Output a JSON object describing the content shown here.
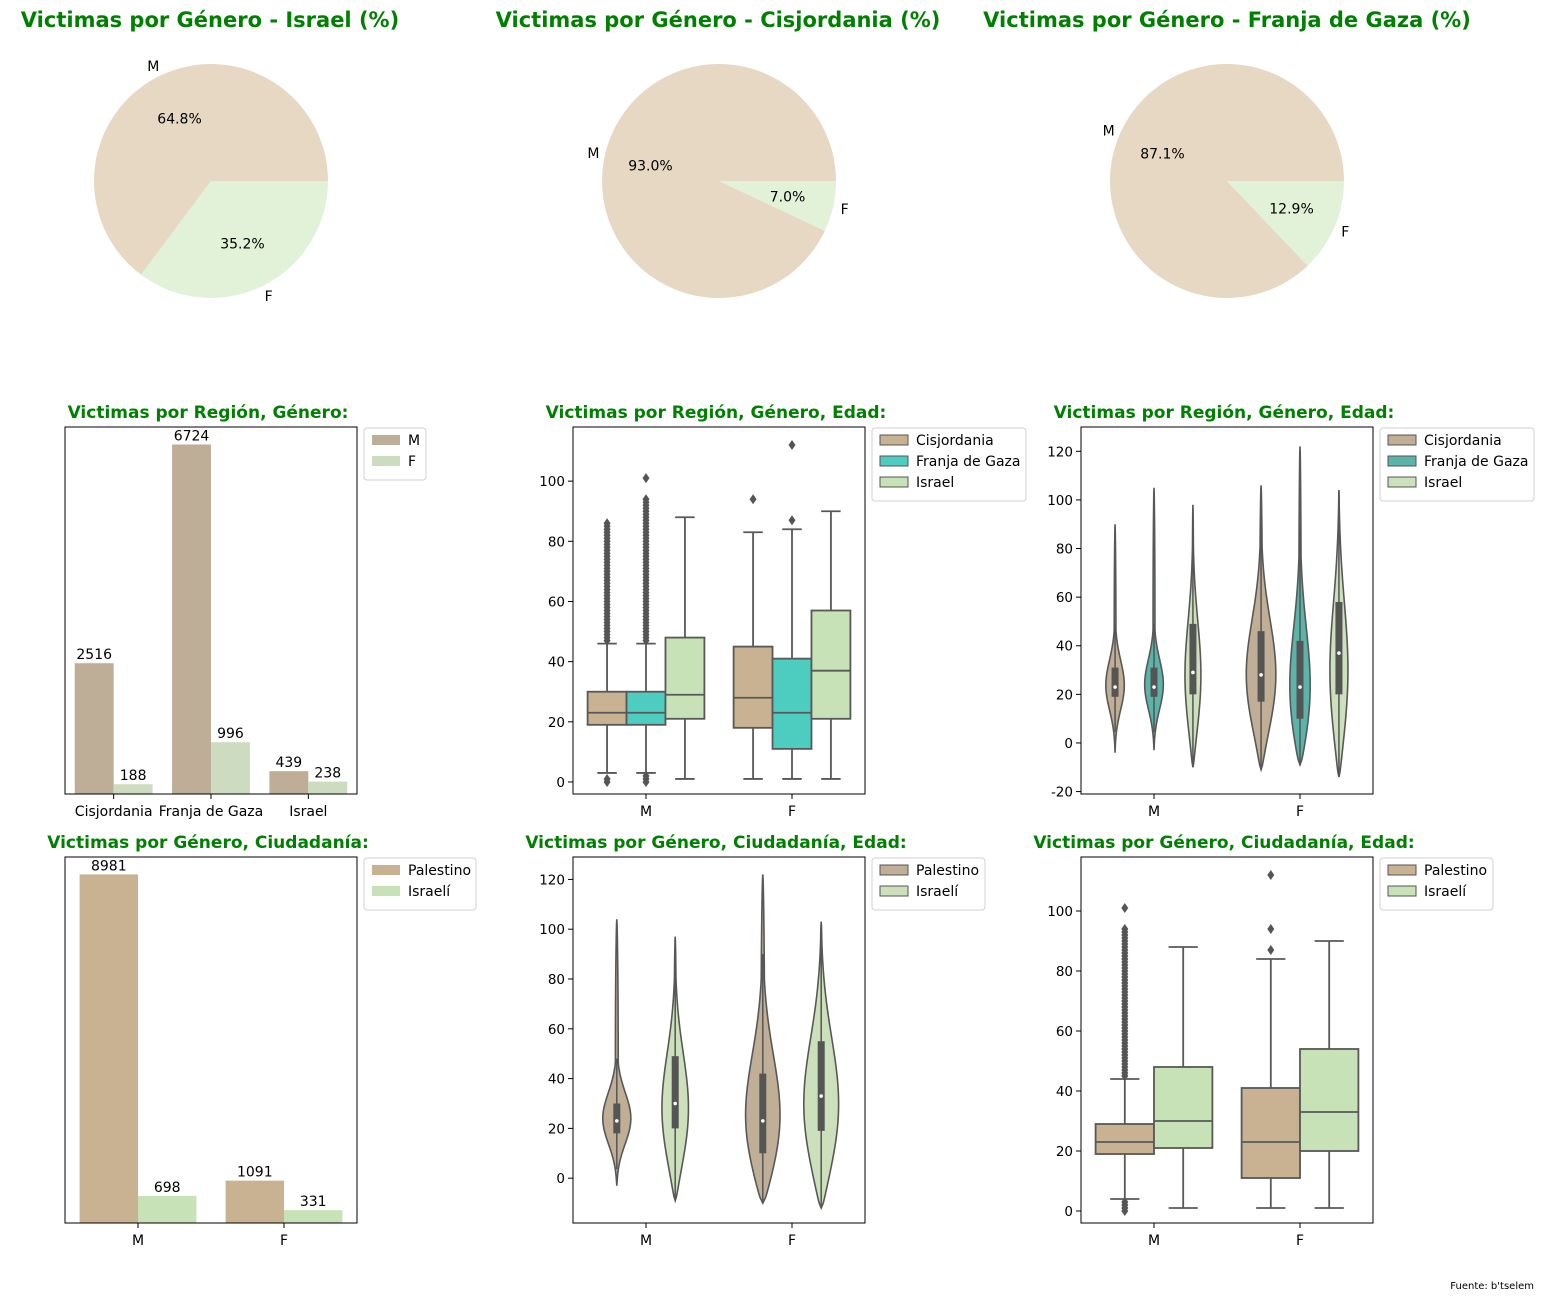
{
  "colors": {
    "title": "#008000",
    "pie_m": "#e6d8c3",
    "pie_f": "#e1f2d9",
    "bar_m": "#bfae97",
    "bar_f": "#cddcc0",
    "palestino": "#c9b291",
    "israeli": "#c7e2b7",
    "cisjordania": "#c9b291",
    "gaza": "#4dcdc0",
    "israel": "#c7e2b7",
    "violin_cis": "#c1ae96",
    "violin_gaza": "#5ab4a9",
    "violin_isr": "#cce0bc",
    "line": "#585858"
  },
  "source": "Fuente: b'tselem",
  "chart_data": [
    {
      "type": "pie",
      "title": "Victimas por Género - Israel (%)",
      "labels": [
        "M",
        "F"
      ],
      "values": [
        64.8,
        35.2
      ],
      "value_labels": [
        "64.8%",
        "35.2%"
      ]
    },
    {
      "type": "pie",
      "title": "Victimas por Género - Cisjordania (%)",
      "labels": [
        "M",
        "F"
      ],
      "values": [
        93.0,
        7.0
      ],
      "value_labels": [
        "93.0%",
        "7.0%"
      ]
    },
    {
      "type": "pie",
      "title": "Victimas por Género - Franja de Gaza (%)",
      "labels": [
        "M",
        "F"
      ],
      "values": [
        87.1,
        12.9
      ],
      "value_labels": [
        "87.1%",
        "12.9%"
      ]
    },
    {
      "type": "bar",
      "title": "Victimas por Región, Género:",
      "categories": [
        "Cisjordania",
        "Franja de Gaza",
        "Israel"
      ],
      "series": [
        {
          "name": "M",
          "values": [
            2516,
            6724,
            439
          ]
        },
        {
          "name": "F",
          "values": [
            188,
            996,
            238
          ]
        }
      ],
      "ylim": [
        0,
        7060
      ],
      "legend": "outside-top-right"
    },
    {
      "type": "box",
      "title": "Victimas por Región, Género, Edad:",
      "categories": [
        "M",
        "F"
      ],
      "yticks": [
        0,
        20,
        40,
        60,
        80,
        100
      ],
      "ylim": [
        -4,
        118
      ],
      "series": [
        {
          "name": "Cisjordania",
          "stats": [
            {
              "whislo": 3,
              "q1": 19,
              "med": 23,
              "q3": 30,
              "whishi": 46,
              "outlier_range": [
                47,
                86
              ],
              "low_outliers": [
                0,
                1
              ]
            },
            {
              "whislo": 1,
              "q1": 18,
              "med": 28,
              "q3": 45,
              "whishi": 83,
              "outliers": [
                94
              ]
            }
          ]
        },
        {
          "name": "Franja de Gaza",
          "stats": [
            {
              "whislo": 3,
              "q1": 19,
              "med": 23,
              "q3": 30,
              "whishi": 46,
              "outlier_range": [
                47,
                94
              ],
              "extra_outliers": [
                101
              ],
              "low_outliers": [
                0,
                1,
                2
              ]
            },
            {
              "whislo": 1,
              "q1": 11,
              "med": 23,
              "q3": 41,
              "whishi": 84,
              "outliers": [
                87,
                112
              ]
            }
          ]
        },
        {
          "name": "Israel",
          "stats": [
            {
              "whislo": 1,
              "q1": 21,
              "med": 29,
              "q3": 48,
              "whishi": 88
            },
            {
              "whislo": 1,
              "q1": 21,
              "med": 37,
              "q3": 57,
              "whishi": 90
            }
          ]
        }
      ],
      "legend": "outside-top-right"
    },
    {
      "type": "violin",
      "title": "Victimas por Región, Género, Edad:",
      "categories": [
        "M",
        "F"
      ],
      "yticks": [
        -20,
        0,
        20,
        40,
        60,
        80,
        100,
        120
      ],
      "ylim": [
        -21,
        130
      ],
      "series": [
        {
          "name": "Cisjordania",
          "stats": [
            {
              "min": -4,
              "max": 90,
              "q1": 19,
              "med": 23,
              "q3": 31,
              "mode": 22,
              "width": 0.55
            },
            {
              "min": -11,
              "max": 106,
              "q1": 17,
              "med": 28,
              "q3": 46,
              "mode": 22,
              "width": 0.85
            }
          ]
        },
        {
          "name": "Franja de Gaza",
          "stats": [
            {
              "min": -3,
              "max": 105,
              "q1": 19,
              "med": 23,
              "q3": 31,
              "mode": 22,
              "width": 0.6
            },
            {
              "min": -9,
              "max": 122,
              "q1": 10,
              "med": 23,
              "q3": 42,
              "mode": 12,
              "width": 0.7
            }
          ]
        },
        {
          "name": "Israel",
          "stats": [
            {
              "min": -10,
              "max": 98,
              "q1": 20,
              "med": 29,
              "q3": 49,
              "mode": 22,
              "width": 0.45
            },
            {
              "min": -14,
              "max": 104,
              "q1": 20,
              "med": 37,
              "q3": 58,
              "mode": 22,
              "width": 0.5
            }
          ]
        }
      ],
      "legend": "outside-top-right"
    },
    {
      "type": "bar",
      "title": "Victimas por Género, Ciudadanía:",
      "categories": [
        "M",
        "F"
      ],
      "series": [
        {
          "name": "Palestino",
          "values": [
            8981,
            1091
          ]
        },
        {
          "name": "Israelí",
          "values": [
            698,
            331
          ]
        }
      ],
      "ylim": [
        0,
        9430
      ],
      "legend": "outside-top-right"
    },
    {
      "type": "violin",
      "title": "Victimas por Género, Ciudadanía, Edad:",
      "categories": [
        "M",
        "F"
      ],
      "yticks": [
        0,
        20,
        40,
        60,
        80,
        100,
        120
      ],
      "ylim": [
        -18,
        129
      ],
      "series": [
        {
          "name": "Palestino",
          "stats": [
            {
              "min": -3,
              "max": 104,
              "q1": 18,
              "med": 23,
              "q3": 30,
              "mode": 22,
              "width": 0.6
            },
            {
              "min": -10,
              "max": 122,
              "q1": 10,
              "med": 23,
              "q3": 42,
              "mode": 15,
              "width": 0.75
            }
          ]
        },
        {
          "name": "Israelí",
          "stats": [
            {
              "min": -9,
              "max": 97,
              "q1": 20,
              "med": 30,
              "q3": 49,
              "mode": 22,
              "width": 0.5
            },
            {
              "min": -12,
              "max": 103,
              "q1": 19,
              "med": 33,
              "q3": 55,
              "mode": 22,
              "width": 0.65
            }
          ]
        }
      ],
      "legend": "outside-top-right"
    },
    {
      "type": "box",
      "title": "Victimas por Género, Ciudadanía, Edad:",
      "categories": [
        "M",
        "F"
      ],
      "yticks": [
        0,
        20,
        40,
        60,
        80,
        100
      ],
      "ylim": [
        -4,
        118
      ],
      "series": [
        {
          "name": "Palestino",
          "stats": [
            {
              "whislo": 4,
              "q1": 19,
              "med": 23,
              "q3": 29,
              "whishi": 44,
              "outlier_range": [
                45,
                94
              ],
              "extra_outliers": [
                101
              ],
              "low_outliers": [
                0,
                1,
                2,
                3
              ]
            },
            {
              "whislo": 1,
              "q1": 11,
              "med": 23,
              "q3": 41,
              "whishi": 84,
              "outliers": [
                87,
                94,
                112
              ]
            }
          ]
        },
        {
          "name": "Israelí",
          "stats": [
            {
              "whislo": 1,
              "q1": 21,
              "med": 30,
              "q3": 48,
              "whishi": 88
            },
            {
              "whislo": 1,
              "q1": 20,
              "med": 33,
              "q3": 54,
              "whishi": 90
            }
          ]
        }
      ],
      "legend": "outside-top-right"
    }
  ]
}
